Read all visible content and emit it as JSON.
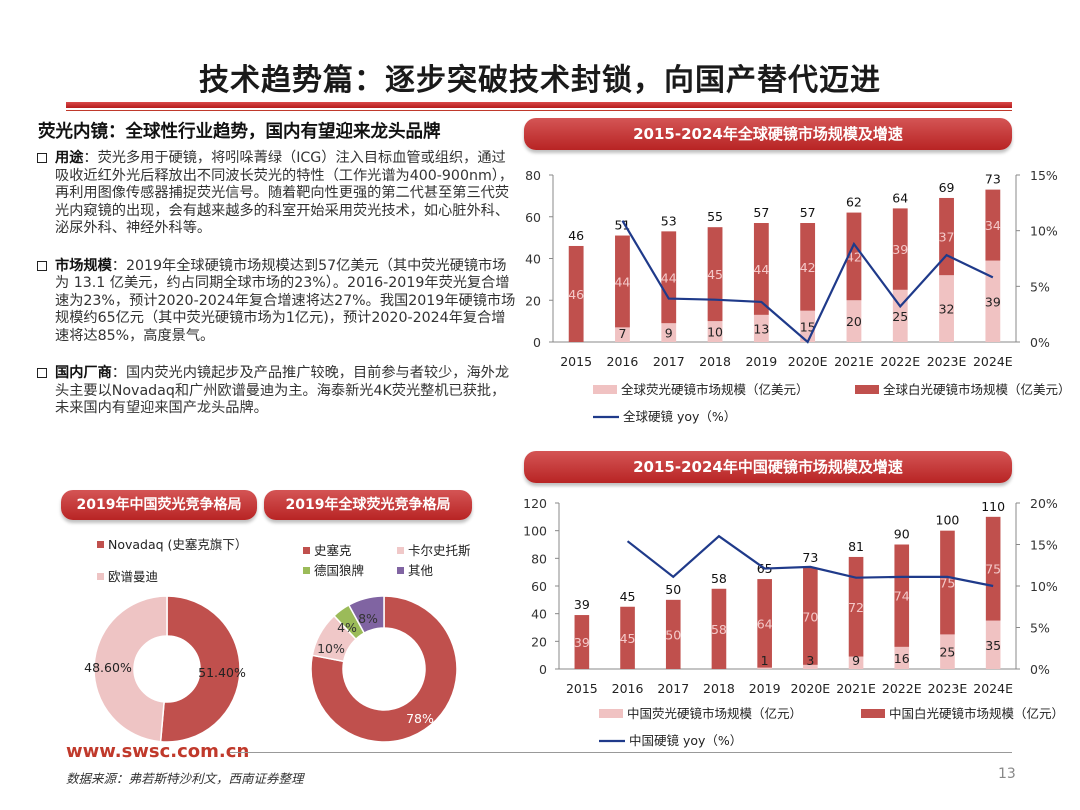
{
  "page": {
    "title": "技术趋势篇：逐步突破技术封锁，向国产替代迈进",
    "section_heading": "荧光内镜：全球性行业趋势，国内有望迎来龙头品牌",
    "footer_url": "www.swsc.com.cn",
    "footer_source": "数据来源：弗若斯特沙利文，西南证券整理",
    "page_number": "13"
  },
  "bullets": [
    {
      "lead": "用途",
      "text": "：荧光多用于硬镜，将吲哚菁绿（ICG）注入目标血管或组织，通过吸收近红外光后释放出不同波长荧光的特性（工作光谱为400-900nm），再利用图像传感器捕捉荧光信号。随着靶向性更强的第二代甚至第三代荧光内窥镜的出现，会有越来越多的科室开始采用荧光技术，如心脏外科、泌尿外科、神经外科等。"
    },
    {
      "lead": "市场规模",
      "text": "：2019年全球硬镜市场规模达到57亿美元（其中荧光硬镜市场为 13.1 亿美元，约占同期全球市场的23%）。2016-2019年荧光复合增速为23%，预计2020-2024年复合增速将达27%。我国2019年硬镜市场规模约65亿元（其中荧光硬镜市场为1亿元)，预计2020-2024年复合增速将达85%，高度景气。"
    },
    {
      "lead": "国内厂商",
      "text": "：国内荧光内镜起步及产品推广较晚，目前参与者较少，海外龙头主要以Novadaq和广州欧谱曼迪为主。海泰新光4K荧光整机已获批，未来国内有望迎来国产龙头品牌。"
    }
  ],
  "chart_data": [
    {
      "id": "global",
      "type": "bar",
      "title": "2015-2024年全球硬镜市场规模及增速",
      "categories": [
        "2015",
        "2016",
        "2017",
        "2018",
        "2019",
        "2020E",
        "2021E",
        "2022E",
        "2023E",
        "2024E"
      ],
      "series": [
        {
          "name": "全球荧光硬镜市场规模（亿美元）",
          "kind": "stacked-bar",
          "color": "#f0c2c2",
          "values": [
            null,
            7,
            9,
            10,
            13,
            15,
            20,
            25,
            32,
            39
          ]
        },
        {
          "name": "全球白光硬镜市场规模（亿美元）",
          "kind": "stacked-bar",
          "color": "#c0504d",
          "values": [
            46,
            44,
            44,
            45,
            44,
            42,
            42,
            39,
            37,
            34
          ]
        },
        {
          "name": "全球硬镜 yoy（%）",
          "kind": "line",
          "axis": "right",
          "color": "#1f3a8a",
          "values": [
            null,
            10.9,
            3.9,
            3.8,
            3.6,
            0,
            8.8,
            3.2,
            7.8,
            5.8
          ]
        }
      ],
      "totals": [
        46,
        51,
        53,
        55,
        57,
        57,
        62,
        64,
        69,
        73
      ],
      "ylim": [
        0,
        80
      ],
      "yticks": [
        0,
        20,
        40,
        60,
        80
      ],
      "y2lim": [
        0,
        15
      ],
      "y2ticks": [
        "0%",
        "5%",
        "10%",
        "15%"
      ]
    },
    {
      "id": "china",
      "type": "bar",
      "title": "2015-2024年中国硬镜市场规模及增速",
      "categories": [
        "2015",
        "2016",
        "2017",
        "2018",
        "2019",
        "2020E",
        "2021E",
        "2022E",
        "2023E",
        "2024E"
      ],
      "series": [
        {
          "name": "中国荧光硬镜市场规模（亿元）",
          "kind": "stacked-bar",
          "color": "#f0c2c2",
          "values": [
            null,
            null,
            null,
            null,
            1,
            3,
            9,
            16,
            25,
            35
          ]
        },
        {
          "name": "中国白光硬镜市场规模（亿元）",
          "kind": "stacked-bar",
          "color": "#c0504d",
          "values": [
            39,
            45,
            50,
            58,
            64,
            70,
            72,
            74,
            75,
            75
          ]
        },
        {
          "name": "中国硬镜 yoy（%）",
          "kind": "line",
          "axis": "right",
          "color": "#1f3a8a",
          "values": [
            null,
            15.4,
            11.1,
            16,
            12.1,
            12.3,
            11,
            11.1,
            11.1,
            10
          ]
        }
      ],
      "totals": [
        39,
        45,
        50,
        58,
        65,
        73,
        81,
        90,
        100,
        110
      ],
      "ylim": [
        0,
        120
      ],
      "yticks": [
        0,
        20,
        40,
        60,
        80,
        100,
        120
      ],
      "y2lim": [
        0,
        20
      ],
      "y2ticks": [
        "0%",
        "5%",
        "10%",
        "15%",
        "20%"
      ]
    },
    {
      "id": "china-fluo-share",
      "type": "pie",
      "variant": "donut",
      "title": "2019年中国荧光竞争格局",
      "slices": [
        {
          "name": "Novadaq (史塞克旗下）",
          "value": 51.4,
          "label": "51.40%",
          "color": "#c0504d"
        },
        {
          "name": "欧谱曼迪",
          "value": 48.6,
          "label": "48.60%",
          "color": "#eec4c4"
        }
      ]
    },
    {
      "id": "global-fluo-share",
      "type": "pie",
      "variant": "donut",
      "title": "2019年全球荧光竞争格局",
      "slices": [
        {
          "name": "史塞克",
          "value": 78,
          "label": "78%",
          "color": "#c0504d"
        },
        {
          "name": "卡尔史托斯",
          "value": 10,
          "label": "10%",
          "color": "#f0c8c8"
        },
        {
          "name": "德国狼牌",
          "value": 4,
          "label": "4%",
          "color": "#9bbb59"
        },
        {
          "name": "其他",
          "value": 8,
          "label": "8%",
          "color": "#8064a2"
        }
      ]
    }
  ]
}
